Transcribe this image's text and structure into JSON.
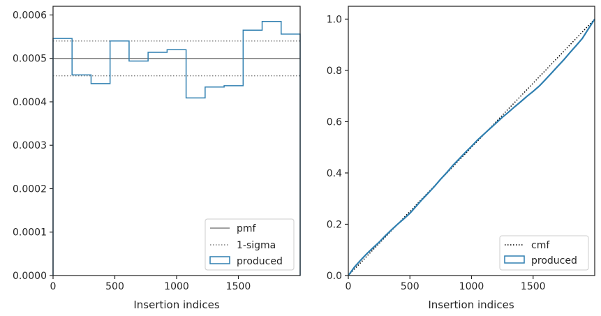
{
  "chart_data": [
    {
      "type": "step",
      "xlabel": "Insertion indices",
      "ylabel": "",
      "xlim": [
        0,
        2000
      ],
      "ylim": [
        0,
        0.00062
      ],
      "xticks": [
        0,
        500,
        1000,
        1500
      ],
      "xtick_labels": [
        "0",
        "500",
        "1000",
        "1500"
      ],
      "yticks": [
        0,
        0.0001,
        0.0002,
        0.0003,
        0.0004,
        0.0005,
        0.0006
      ],
      "ytick_labels": [
        "0.0000",
        "0.0001",
        "0.0002",
        "0.0003",
        "0.0004",
        "0.0005",
        "0.0006"
      ],
      "legend_position": "lower right",
      "series": [
        {
          "name": "pmf",
          "kind": "hline",
          "y": 0.0005,
          "color": "#808080",
          "style": "solid"
        },
        {
          "name": "1-sigma",
          "kind": "hlines",
          "y": [
            0.00054,
            0.00046
          ],
          "color": "#808080",
          "style": "dotted"
        },
        {
          "name": "produced",
          "kind": "histogram",
          "color": "#2f7fb0",
          "bin_edges": [
            0,
            153.8,
            307.7,
            461.5,
            615.4,
            769.2,
            923.1,
            1076.9,
            1230.8,
            1384.6,
            1538.5,
            1692.3,
            1846.2,
            2000
          ],
          "values": [
            0.000546,
            0.000462,
            0.000442,
            0.00054,
            0.000494,
            0.000514,
            0.00052,
            0.000409,
            0.000434,
            0.000437,
            0.000565,
            0.000585,
            0.000556
          ]
        }
      ]
    },
    {
      "type": "line",
      "xlabel": "Insertion indices",
      "ylabel": "",
      "xlim": [
        0,
        2000
      ],
      "ylim": [
        0,
        1.05
      ],
      "xticks": [
        0,
        500,
        1000,
        1500
      ],
      "xtick_labels": [
        "0",
        "500",
        "1000",
        "1500"
      ],
      "yticks": [
        0,
        0.2,
        0.4,
        0.6,
        0.8,
        1.0
      ],
      "ytick_labels": [
        "0.0",
        "0.2",
        "0.4",
        "0.6",
        "0.8",
        "1.0"
      ],
      "legend_position": "lower right",
      "series": [
        {
          "name": "cmf",
          "kind": "line",
          "color": "#000000",
          "style": "dotted",
          "x": [
            0,
            2000
          ],
          "y": [
            0,
            1.0
          ]
        },
        {
          "name": "produced",
          "kind": "cumulative",
          "color": "#2f7fb0",
          "x": [
            0,
            50,
            100,
            150,
            200,
            250,
            300,
            350,
            400,
            450,
            500,
            550,
            600,
            650,
            700,
            750,
            800,
            850,
            900,
            950,
            1000,
            1050,
            1100,
            1150,
            1200,
            1250,
            1300,
            1350,
            1400,
            1450,
            1500,
            1550,
            1600,
            1650,
            1700,
            1750,
            1800,
            1850,
            1900,
            1950,
            2000
          ],
          "y": [
            0,
            0.033,
            0.06,
            0.085,
            0.108,
            0.13,
            0.155,
            0.178,
            0.2,
            0.221,
            0.243,
            0.27,
            0.297,
            0.322,
            0.348,
            0.376,
            0.402,
            0.43,
            0.455,
            0.48,
            0.504,
            0.529,
            0.551,
            0.573,
            0.595,
            0.617,
            0.637,
            0.658,
            0.678,
            0.699,
            0.718,
            0.739,
            0.764,
            0.79,
            0.816,
            0.842,
            0.87,
            0.897,
            0.925,
            0.963,
            1.0
          ]
        }
      ]
    }
  ]
}
